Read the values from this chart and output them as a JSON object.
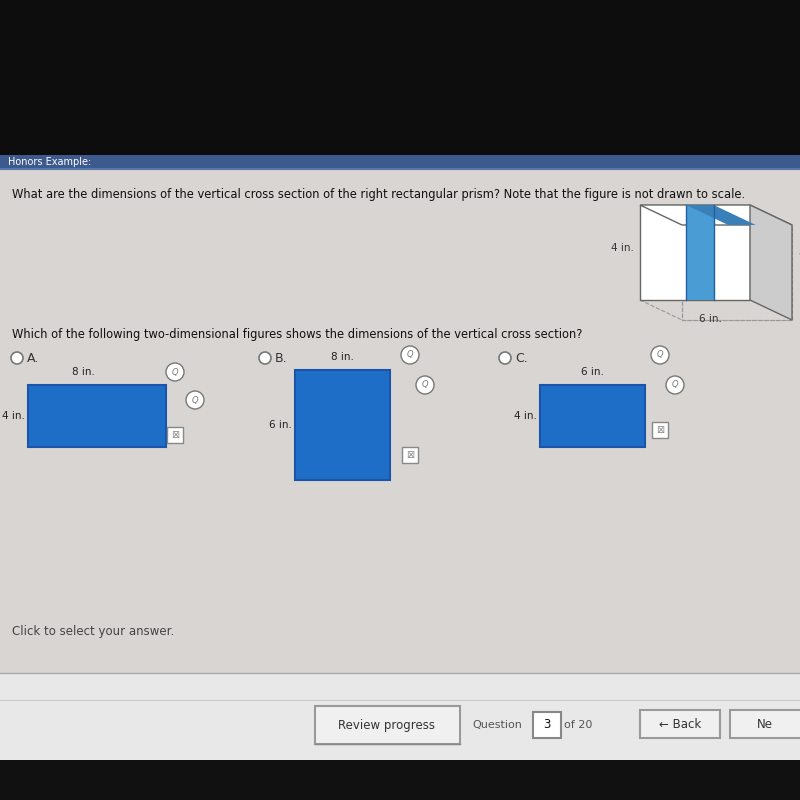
{
  "bg_dark": "#111111",
  "bg_content": "#d8d5d2",
  "bg_top_dark": "#000000",
  "title_bar_color": "#3d5a8e",
  "title_bar_text": "Honors Example:",
  "question_text": "What are the dimensions of the vertical cross section of the right rectangular prism? Note that the figure is not drawn to scale.",
  "question2_text": "Which of the following two-dimensional figures shows the dimensions of the vertical cross section?",
  "click_text": "Click to select your answer.",
  "blue_rect_color": "#1e6ec8",
  "blue_rect_edge": "#1a55aa",
  "prism_face_color": "#ffffff",
  "prism_edge_color": "#666666",
  "prism_side_color": "#cccccc",
  "prism_blue": "#4a9cd4",
  "prism_blue_top": "#3a80b8",
  "label_4in": "4 in.",
  "label_6in": "6 in.",
  "label_8": "8",
  "label_8in_A": "8 in.",
  "label_4in_A": "4 in.",
  "label_8in_B": "8 in.",
  "label_6in_B": "6 in.",
  "label_6in_C": "6 in.",
  "label_4in_C": "4 in.",
  "bottom_sep_color": "#aaaaaa",
  "bottom_bg": "#e8e8e8",
  "btn_bg": "#e0e0e0",
  "btn_edge": "#bbbbbb",
  "nav_text_color": "#333333",
  "icon_color": "#888888"
}
